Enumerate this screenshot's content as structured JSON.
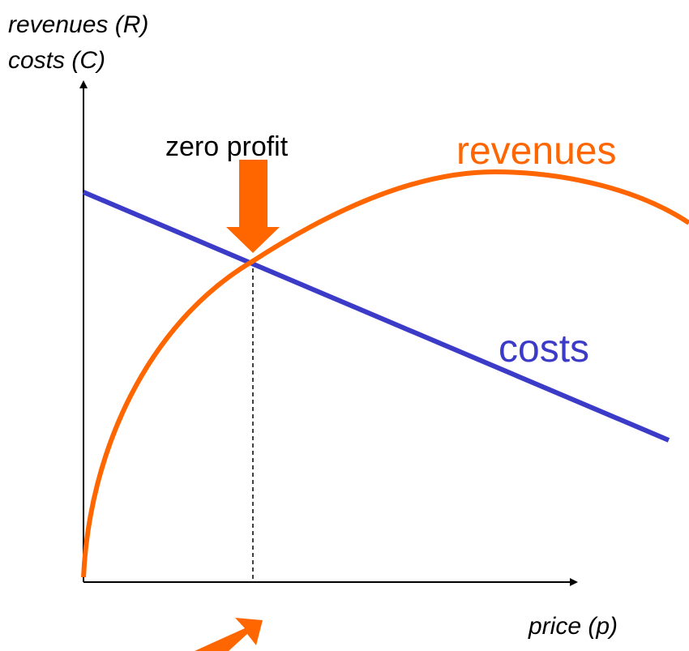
{
  "y_axis_label": [
    "revenues (R)",
    "costs (C)"
  ],
  "x_axis_label": "price (p)",
  "annotation": "zero profit",
  "curves": {
    "revenues": "revenues",
    "costs": "costs"
  }
}
